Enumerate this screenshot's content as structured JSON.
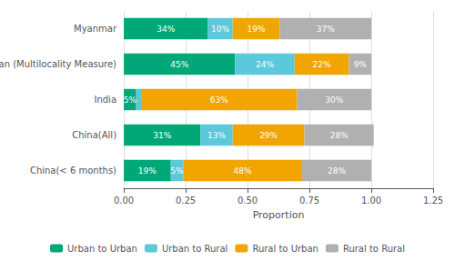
{
  "chart_data": {
    "type": "bar",
    "orientation": "horizontal",
    "stacked": true,
    "categories": [
      "China(< 6 months)",
      "China(All)",
      "India",
      "Iran (Multilocality Measure)",
      "Myanmar"
    ],
    "series": [
      {
        "name": "Urban to Urban",
        "color": "#00a878",
        "values": [
          0.19,
          0.31,
          0.05,
          0.45,
          0.34
        ],
        "value_labels": [
          "19%",
          "31%",
          "5%",
          "45%",
          "34%"
        ]
      },
      {
        "name": "Urban to Rural",
        "color": "#5bc8db",
        "values": [
          0.05,
          0.13,
          0.02,
          0.24,
          0.1
        ],
        "value_labels": [
          "5%",
          "13%",
          null,
          "24%",
          "10%"
        ]
      },
      {
        "name": "Rural to Urban",
        "color": "#f0a500",
        "values": [
          0.48,
          0.29,
          0.63,
          0.22,
          0.19
        ],
        "value_labels": [
          "48%",
          "29%",
          "63%",
          "22%",
          "19%"
        ]
      },
      {
        "name": "Rural to Rural",
        "color": "#b0b0b0",
        "values": [
          0.28,
          0.28,
          0.3,
          0.09,
          0.37
        ],
        "value_labels": [
          "28%",
          "28%",
          "30%",
          "9%",
          "37%"
        ]
      }
    ],
    "xlabel": "Proportion",
    "xlim": [
      0,
      1.25
    ],
    "xticks": [
      {
        "value": 0.0,
        "label": "0.00"
      },
      {
        "value": 0.25,
        "label": "0.25"
      },
      {
        "value": 0.5,
        "label": "0.50"
      },
      {
        "value": 0.75,
        "label": "0.75"
      },
      {
        "value": 1.0,
        "label": "1.00"
      },
      {
        "value": 1.25,
        "label": "1.25"
      }
    ],
    "grid": true,
    "data_labels": true,
    "legend": "bottom"
  }
}
